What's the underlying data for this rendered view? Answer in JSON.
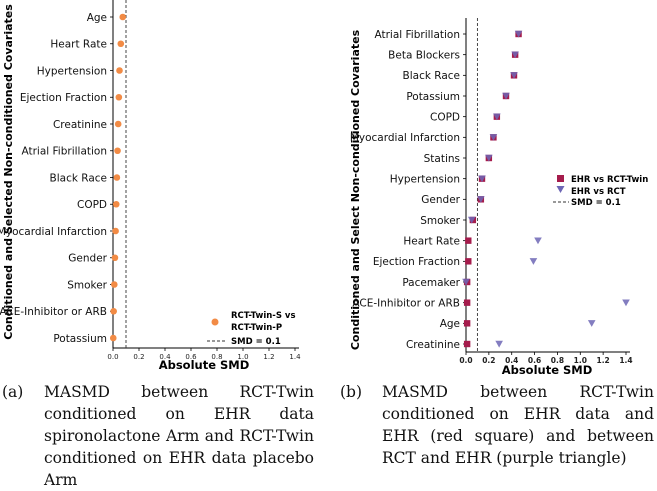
{
  "colors": {
    "orange": "#F28B45",
    "maroon": "#A51C4C",
    "purple": "#6D66B5",
    "axis": "#000000",
    "ref": "#333333"
  },
  "chart_data": [
    {
      "type": "scatter",
      "ylabel": "Conditioned and Selected Non-conditioned Covariates",
      "xlabel": "Absolute SMD",
      "xlim": [
        0,
        1.4
      ],
      "xticks": [
        "0.0",
        "0.2",
        "0.4",
        "0.6",
        "0.8",
        "1.0",
        "1.2",
        "1.4"
      ],
      "xtick_values": [
        0,
        0.2,
        0.4,
        0.6,
        0.8,
        1.0,
        1.2,
        1.4
      ],
      "grid": false,
      "legend_position": "bottom-right",
      "categories": [
        "Age",
        "Heart Rate",
        "Hypertension",
        "Ejection Fraction",
        "Creatinine",
        "Atrial Fibrillation",
        "Black Race",
        "COPD",
        "Myocardial Infarction",
        "Gender",
        "Smoker",
        "ACE-Inhibitor or ARB",
        "Potassium"
      ],
      "series": [
        {
          "name": "RCT-Twin-S vs RCT-Twin-P",
          "marker": "circle",
          "color": "#F28B45",
          "values": [
            0.075,
            0.06,
            0.05,
            0.045,
            0.04,
            0.035,
            0.03,
            0.025,
            0.02,
            0.015,
            0.01,
            0.005,
            0.002
          ]
        }
      ],
      "reference_line": {
        "x": 0.1,
        "label": "SMD = 0.1"
      }
    },
    {
      "type": "scatter",
      "ylabel": "Conditioned and Select Non-conditioned Covariates",
      "xlabel": "Absolute SMD",
      "xlim": [
        0,
        1.4
      ],
      "xticks": [
        "0.0",
        "0.2",
        "0.4",
        "0.6",
        "0.8",
        "1.0",
        "1.2",
        "1.4"
      ],
      "xtick_values": [
        0,
        0.2,
        0.4,
        0.6,
        0.8,
        1.0,
        1.2,
        1.4
      ],
      "grid": false,
      "legend_position": "right",
      "categories": [
        "Atrial Fibrillation",
        "Beta Blockers",
        "Black Race",
        "Potassium",
        "COPD",
        "Myocardial Infarction",
        "Statins",
        "Hypertension",
        "Gender",
        "Smoker",
        "Heart Rate",
        "Ejection Fraction",
        "Pacemaker",
        "ACE-Inhibitor or ARB",
        "Age",
        "Creatinine"
      ],
      "series": [
        {
          "name": "EHR vs RCT-Twin",
          "marker": "square",
          "color": "#A51C4C",
          "values": [
            0.46,
            0.43,
            0.42,
            0.35,
            0.27,
            0.24,
            0.2,
            0.14,
            0.13,
            0.06,
            0.02,
            0.02,
            0.01,
            0.01,
            0.01,
            0.01
          ]
        },
        {
          "name": "EHR vs RCT",
          "marker": "triangle-down",
          "color": "#6D66B5",
          "values": [
            0.46,
            0.43,
            0.42,
            0.35,
            0.27,
            0.24,
            0.2,
            0.14,
            0.13,
            0.05,
            0.63,
            0.59,
            0.0,
            1.4,
            1.1,
            0.29
          ]
        }
      ],
      "reference_line": {
        "x": 0.1,
        "label": "SMD = 0.1"
      }
    }
  ],
  "captions": [
    {
      "label": "(a)",
      "text": "MASMD between RCT-Twin conditioned on EHR data spironolactone Arm and RCT-Twin conditioned on EHR data placebo Arm"
    },
    {
      "label": "(b)",
      "text": "MASMD between RCT-Twin conditioned on EHR data and EHR (red square) and between RCT and EHR (purple triangle)"
    }
  ]
}
